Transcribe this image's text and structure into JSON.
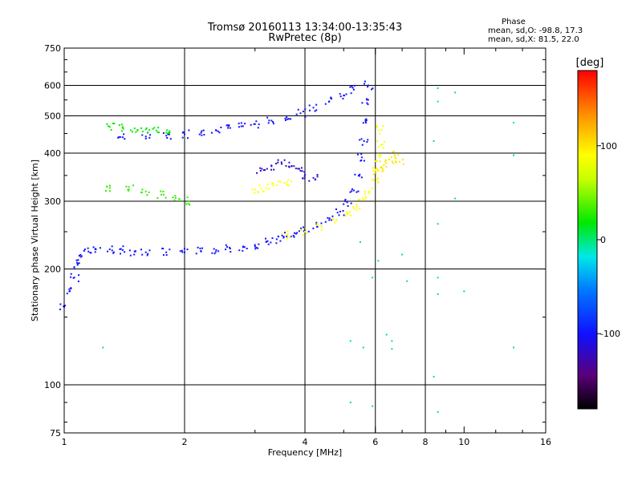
{
  "header": {
    "title_line1": "Tromsø 20160113 13:34:00-13:35:43",
    "title_line2": "RwPretec (8p)"
  },
  "phase_stats": {
    "heading": "Phase",
    "o_mode": "mean, sd,O: -98.8, 17.3",
    "x_mode": "mean, sd,X: 81.5, 22.0"
  },
  "chart_data": {
    "type": "scatter",
    "xlabel": "Frequency [MHz]",
    "ylabel": "Stationary phase Virtual Height [km]",
    "x_scale": "log",
    "y_scale": "log",
    "xlim": [
      1,
      16
    ],
    "ylim": [
      75,
      750
    ],
    "x_ticks": [
      1,
      2,
      4,
      6,
      8,
      10,
      16
    ],
    "x_tick_labels": [
      "1",
      "2",
      "4",
      "6",
      "8",
      "10",
      "16"
    ],
    "x_gridlines": [
      2,
      4,
      6,
      8
    ],
    "y_ticks": [
      75,
      100,
      200,
      300,
      400,
      500,
      600,
      750
    ],
    "y_tick_labels": [
      "75",
      "100",
      "200",
      "300",
      "400",
      "500",
      "600",
      "750"
    ],
    "y_gridlines": [
      100,
      200,
      300,
      400,
      500,
      600
    ],
    "grid": true,
    "colorbar": {
      "label": "[deg]",
      "range": [
        -180,
        180
      ],
      "ticks": [
        100,
        0,
        -100
      ],
      "tick_labels": [
        "100",
        "0",
        "-100"
      ]
    },
    "series": [
      {
        "trace": "bottomside-blue",
        "color_phase": -100,
        "points": [
          [
            1.0,
            160
          ],
          [
            1.03,
            175
          ],
          [
            1.06,
            190
          ],
          [
            1.08,
            205
          ],
          [
            1.1,
            215
          ],
          [
            1.15,
            222
          ],
          [
            1.2,
            225
          ],
          [
            1.3,
            225
          ],
          [
            1.4,
            224
          ],
          [
            1.5,
            222
          ],
          [
            1.6,
            221
          ],
          [
            1.8,
            221
          ],
          [
            2.0,
            221
          ],
          [
            2.2,
            222
          ],
          [
            2.4,
            224
          ],
          [
            2.6,
            226
          ],
          [
            2.8,
            228
          ],
          [
            3.0,
            231
          ],
          [
            3.2,
            235
          ],
          [
            3.4,
            239
          ],
          [
            3.6,
            243
          ],
          [
            3.8,
            247
          ],
          [
            4.0,
            251
          ],
          [
            4.3,
            258
          ],
          [
            4.6,
            268
          ],
          [
            4.9,
            282
          ],
          [
            5.1,
            298
          ],
          [
            5.3,
            320
          ],
          [
            5.45,
            350
          ],
          [
            5.55,
            390
          ],
          [
            5.62,
            430
          ],
          [
            5.68,
            480
          ],
          [
            5.72,
            540
          ],
          [
            5.76,
            600
          ]
        ]
      },
      {
        "trace": "bottomside-yellow",
        "color_phase": 90,
        "points": [
          [
            3.6,
            245
          ],
          [
            4.0,
            250
          ],
          [
            4.4,
            258
          ],
          [
            4.8,
            268
          ],
          [
            5.1,
            278
          ],
          [
            5.4,
            290
          ],
          [
            5.6,
            302
          ],
          [
            5.8,
            318
          ],
          [
            5.95,
            340
          ],
          [
            6.05,
            365
          ],
          [
            6.15,
            390
          ],
          [
            6.2,
            420
          ],
          [
            6.22,
            460
          ]
        ]
      },
      {
        "trace": "upper-blue",
        "color_phase": -100,
        "points": [
          [
            1.4,
            440
          ],
          [
            1.6,
            442
          ],
          [
            1.8,
            444
          ],
          [
            2.0,
            448
          ],
          [
            2.2,
            452
          ],
          [
            2.4,
            458
          ],
          [
            2.6,
            465
          ],
          [
            2.8,
            470
          ],
          [
            3.0,
            476
          ],
          [
            3.3,
            486
          ],
          [
            3.6,
            496
          ],
          [
            3.9,
            508
          ],
          [
            4.2,
            525
          ],
          [
            4.6,
            545
          ],
          [
            5.0,
            565
          ],
          [
            5.3,
            585
          ]
        ]
      },
      {
        "trace": "upper-green",
        "color_phase": 20,
        "points": [
          [
            1.3,
            468
          ],
          [
            1.4,
            466
          ],
          [
            1.5,
            464
          ],
          [
            1.6,
            461
          ],
          [
            1.7,
            458
          ],
          [
            1.8,
            452
          ]
        ]
      },
      {
        "trace": "mid-purple",
        "color_phase": -120,
        "points": [
          [
            3.1,
            360
          ],
          [
            3.3,
            370
          ],
          [
            3.5,
            375
          ],
          [
            3.7,
            370
          ],
          [
            3.9,
            360
          ],
          [
            4.0,
            352
          ],
          [
            4.2,
            345
          ]
        ]
      },
      {
        "trace": "mid-green",
        "color_phase": 30,
        "points": [
          [
            1.3,
            325
          ],
          [
            1.45,
            322
          ],
          [
            1.6,
            318
          ],
          [
            1.75,
            312
          ],
          [
            1.9,
            306
          ],
          [
            2.05,
            300
          ]
        ]
      },
      {
        "trace": "mid-yellow",
        "color_phase": 90,
        "points": [
          [
            3.0,
            322
          ],
          [
            3.2,
            325
          ],
          [
            3.4,
            330
          ],
          [
            3.6,
            336
          ]
        ]
      },
      {
        "trace": "x-branch",
        "color_phase": 100,
        "points": [
          [
            6.1,
            360
          ],
          [
            6.3,
            372
          ],
          [
            6.5,
            385
          ],
          [
            6.7,
            395
          ],
          [
            6.9,
            380
          ]
        ]
      },
      {
        "trace": "scattered",
        "color_phase": 0,
        "points": [
          [
            8.6,
            590
          ],
          [
            8.6,
            545
          ],
          [
            8.4,
            430
          ],
          [
            8.6,
            262
          ],
          [
            8.6,
            190
          ],
          [
            8.6,
            172
          ],
          [
            8.4,
            105
          ],
          [
            8.6,
            85
          ],
          [
            9.5,
            575
          ],
          [
            9.5,
            305
          ],
          [
            10.0,
            175
          ],
          [
            13.3,
            480
          ],
          [
            13.3,
            395
          ],
          [
            13.3,
            125
          ],
          [
            6.6,
            130
          ],
          [
            6.6,
            124
          ],
          [
            6.4,
            135
          ],
          [
            7.2,
            186
          ],
          [
            7.0,
            218
          ],
          [
            5.9,
            190
          ],
          [
            5.9,
            88
          ],
          [
            5.2,
            90
          ],
          [
            5.5,
            235
          ],
          [
            5.6,
            125
          ],
          [
            5.2,
            130
          ],
          [
            6.1,
            210
          ],
          [
            1.25,
            125
          ]
        ]
      }
    ]
  }
}
